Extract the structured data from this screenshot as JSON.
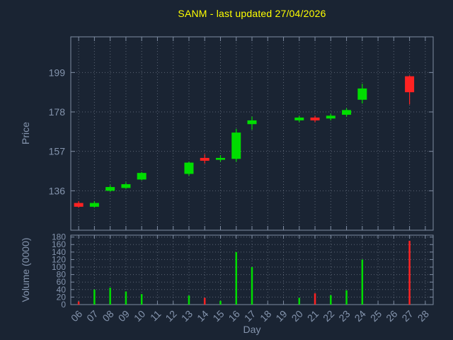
{
  "title": "SANM - last updated 27/04/2026",
  "colors": {
    "background": "#1a2433",
    "title": "#ffff00",
    "axis_text": "#8494ad",
    "grid": "#aab4c4",
    "border": "#7e8ca2",
    "up": "#00dd00",
    "down": "#ff2222"
  },
  "price_axis": {
    "label": "Price",
    "ticks": [
      136,
      157,
      178,
      199
    ]
  },
  "volume_axis": {
    "label": "Volume (0000)",
    "ticks": [
      0,
      20,
      40,
      60,
      80,
      100,
      120,
      140,
      160,
      180
    ]
  },
  "x_axis": {
    "label": "Day",
    "ticks": [
      "06",
      "07",
      "08",
      "09",
      "10",
      "11",
      "12",
      "13",
      "14",
      "15",
      "16",
      "17",
      "18",
      "19",
      "20",
      "21",
      "22",
      "23",
      "24",
      "25",
      "26",
      "27",
      "28"
    ],
    "tick_values": [
      6,
      7,
      8,
      9,
      10,
      11,
      12,
      13,
      14,
      15,
      16,
      17,
      18,
      19,
      20,
      21,
      22,
      23,
      24,
      25,
      26,
      27,
      28
    ]
  },
  "chart_data": {
    "type": "candlestick",
    "title": "SANM - last updated 27/04/2026",
    "xlabel": "Day",
    "ylabel": "Price",
    "ylabel2": "Volume (0000)",
    "xlim": [
      5.5,
      28.5
    ],
    "ylim": [
      115,
      218
    ],
    "volume_ylim": [
      0,
      185
    ],
    "grid": true,
    "legend": false,
    "candles": [
      {
        "day": 6,
        "open": 129.5,
        "high": 130.5,
        "low": 127.0,
        "close": 127.5,
        "volume": 8
      },
      {
        "day": 7,
        "open": 127.5,
        "high": 130.5,
        "low": 127.0,
        "close": 129.5,
        "volume": 40
      },
      {
        "day": 8,
        "open": 136.0,
        "high": 139.0,
        "low": 135.5,
        "close": 138.0,
        "volume": 45
      },
      {
        "day": 9,
        "open": 137.5,
        "high": 140.5,
        "low": 137.0,
        "close": 139.5,
        "volume": 35
      },
      {
        "day": 10,
        "open": 142.0,
        "high": 146.0,
        "low": 141.5,
        "close": 145.5,
        "volume": 28
      },
      {
        "day": 13,
        "open": 145.0,
        "high": 151.5,
        "low": 144.0,
        "close": 151.0,
        "volume": 24
      },
      {
        "day": 14,
        "open": 153.5,
        "high": 155.5,
        "low": 150.5,
        "close": 152.0,
        "volume": 18
      },
      {
        "day": 15,
        "open": 152.5,
        "high": 155.0,
        "low": 151.5,
        "close": 153.5,
        "volume": 10
      },
      {
        "day": 16,
        "open": 153.0,
        "high": 169.0,
        "low": 151.5,
        "close": 167.0,
        "volume": 140
      },
      {
        "day": 17,
        "open": 171.5,
        "high": 175.5,
        "low": 168.5,
        "close": 173.5,
        "volume": 100
      },
      {
        "day": 20,
        "open": 173.5,
        "high": 176.0,
        "low": 172.5,
        "close": 175.0,
        "volume": 18
      },
      {
        "day": 21,
        "open": 175.0,
        "high": 176.0,
        "low": 172.5,
        "close": 173.5,
        "volume": 30
      },
      {
        "day": 22,
        "open": 174.5,
        "high": 177.0,
        "low": 173.5,
        "close": 176.0,
        "volume": 25
      },
      {
        "day": 23,
        "open": 176.5,
        "high": 180.0,
        "low": 175.5,
        "close": 179.0,
        "volume": 38
      },
      {
        "day": 24,
        "open": 184.5,
        "high": 193.0,
        "low": 182.5,
        "close": 190.5,
        "volume": 120
      },
      {
        "day": 27,
        "open": 197.0,
        "high": 197.5,
        "low": 182.0,
        "close": 188.5,
        "volume": 170
      }
    ]
  }
}
